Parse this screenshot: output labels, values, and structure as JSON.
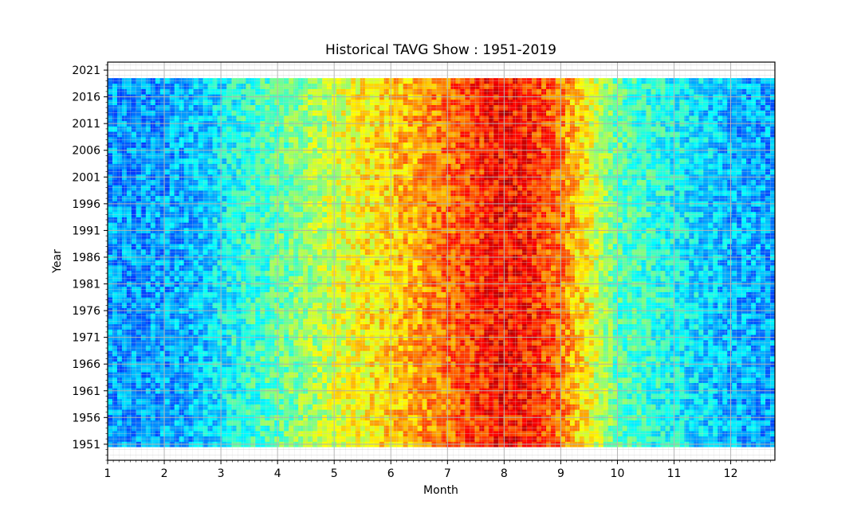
{
  "chart_data": {
    "type": "heatmap",
    "title": "Historical TAVG Show : 1951-2019",
    "xlabel": "Month",
    "ylabel": "Year",
    "xlim": [
      1,
      12.78
    ],
    "ylim": [
      1948,
      2022.5
    ],
    "x_ticks": [
      1,
      2,
      3,
      4,
      5,
      6,
      7,
      8,
      9,
      10,
      11,
      12
    ],
    "y_ticks": [
      1951,
      1956,
      1961,
      1966,
      1971,
      1976,
      1981,
      1986,
      1991,
      1996,
      2001,
      2006,
      2011,
      2016,
      2021
    ],
    "years": [
      1951,
      2019
    ],
    "grid": true,
    "colormap": "jet",
    "seasonal_profile": {
      "month": [
        1,
        1.5,
        2,
        2.5,
        3,
        3.5,
        4,
        4.5,
        5,
        5.5,
        6,
        6.5,
        7,
        7.5,
        8,
        8.5,
        9,
        9.5,
        10,
        10.5,
        11,
        11.5,
        12,
        12.78
      ],
      "level": [
        0.28,
        0.27,
        0.28,
        0.3,
        0.36,
        0.42,
        0.46,
        0.52,
        0.58,
        0.63,
        0.67,
        0.72,
        0.77,
        0.83,
        0.87,
        0.84,
        0.76,
        0.62,
        0.46,
        0.42,
        0.38,
        0.34,
        0.3,
        0.28
      ]
    },
    "colors": {
      "cold": "#0000ff",
      "cool": "#00ffff",
      "mild": "#00ff00",
      "warm": "#ffff00",
      "hot": "#ff0000"
    }
  }
}
